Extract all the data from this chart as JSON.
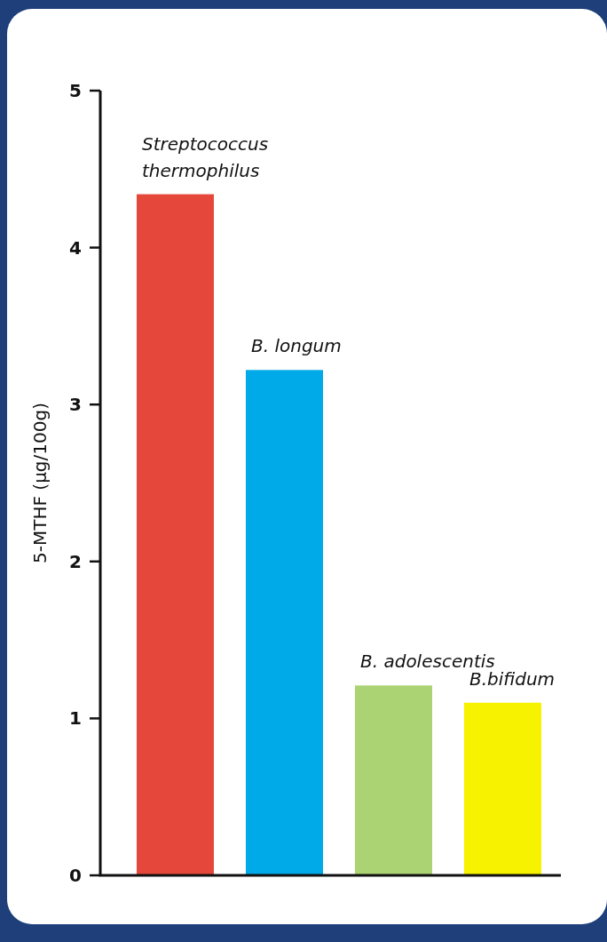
{
  "chart_data": {
    "type": "bar",
    "ylabel": "5-MTHF (µg/100g)",
    "categories": [
      "Streptococcus thermophilus",
      "B. longum",
      "B. adolescentis",
      "B.bifidum"
    ],
    "values": [
      4.34,
      3.22,
      1.21,
      1.1
    ],
    "colors": [
      "#e5483a",
      "#00a9e8",
      "#acd373",
      "#f7f200"
    ],
    "ylim": [
      0,
      5
    ],
    "yticks": [
      0,
      1,
      2,
      3,
      4,
      5
    ]
  }
}
